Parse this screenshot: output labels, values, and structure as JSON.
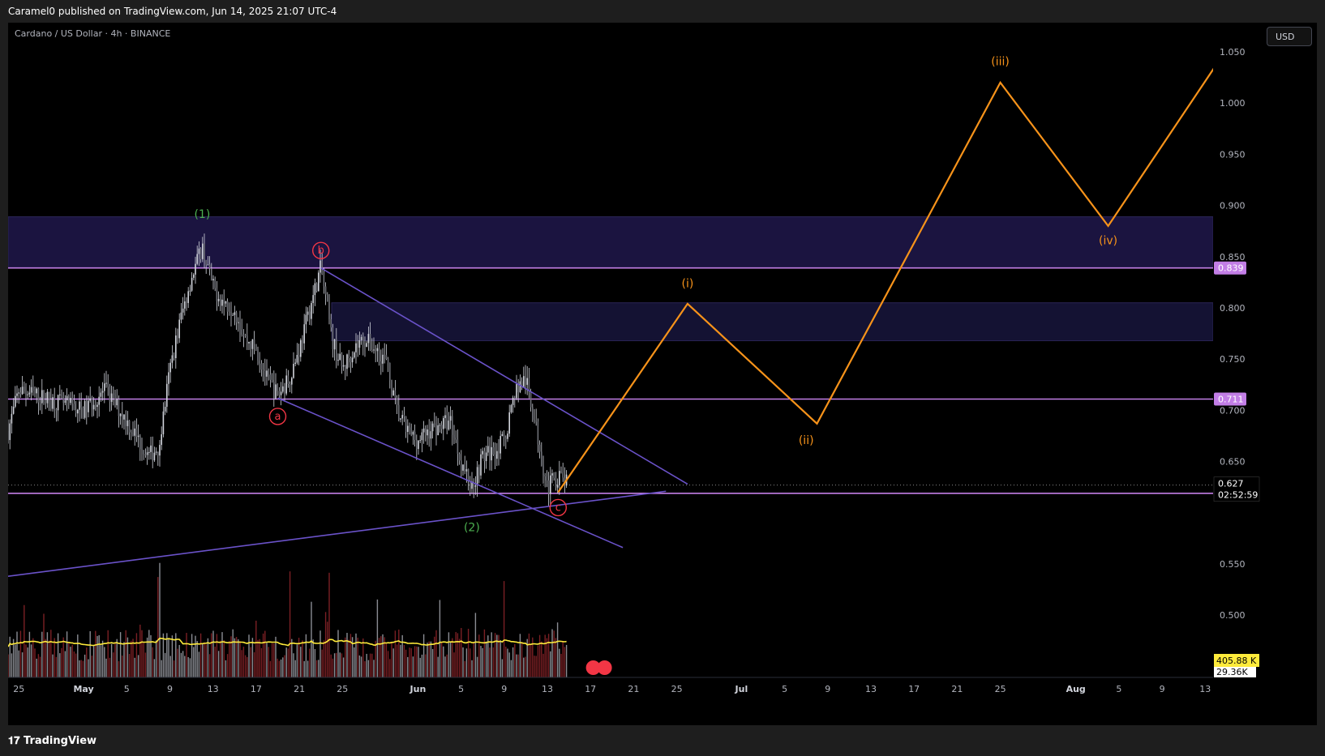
{
  "header": {
    "published": "Caramel0 published on TradingView.com, Jun 14, 2025 21:07 UTC-4",
    "symbol": "Cardano / US Dollar · 4h · BINANCE",
    "currency_button": "USD"
  },
  "footer": {
    "brand": "TradingView"
  },
  "chart_data": {
    "type": "candlestick",
    "price_axis": {
      "ylim": [
        0.45,
        1.055
      ],
      "ticks": [
        0.5,
        0.55,
        0.65,
        0.7,
        0.75,
        0.8,
        0.85,
        0.9,
        0.95,
        1.0,
        1.05
      ],
      "tick_labels": [
        "0.500",
        "0.550",
        "0.650",
        "0.700",
        "0.750",
        "0.800",
        "0.850",
        "0.900",
        "0.950",
        "1.000",
        "1.050"
      ]
    },
    "time_axis": {
      "labels": [
        "25",
        "May",
        "5",
        "9",
        "13",
        "17",
        "21",
        "25",
        "Jun",
        "5",
        "9",
        "13",
        "17",
        "21",
        "25",
        "Jul",
        "5",
        "9",
        "13",
        "17",
        "21",
        "25",
        "Aug",
        "5",
        "9",
        "13"
      ],
      "bold_labels": [
        "May",
        "Jun",
        "Jul",
        "Aug"
      ],
      "dates": [
        "2025-04-25",
        "2025-05-01",
        "2025-05-05",
        "2025-05-09",
        "2025-05-13",
        "2025-05-17",
        "2025-05-21",
        "2025-05-25",
        "2025-06-01",
        "2025-06-05",
        "2025-06-09",
        "2025-06-13",
        "2025-06-17",
        "2025-06-21",
        "2025-06-25",
        "2025-07-01",
        "2025-07-05",
        "2025-07-09",
        "2025-07-13",
        "2025-07-17",
        "2025-07-21",
        "2025-07-25",
        "2025-08-01",
        "2025-08-05",
        "2025-08-09",
        "2025-08-13"
      ]
    },
    "price_path": [
      [
        "2025-04-24",
        0.68
      ],
      [
        "2025-04-25",
        0.72
      ],
      [
        "2025-04-28",
        0.71
      ],
      [
        "2025-05-01",
        0.7
      ],
      [
        "2025-05-03",
        0.72
      ],
      [
        "2025-05-05",
        0.69
      ],
      [
        "2025-05-07",
        0.655
      ],
      [
        "2025-05-08",
        0.665
      ],
      [
        "2025-05-09",
        0.74
      ],
      [
        "2025-05-10",
        0.79
      ],
      [
        "2025-05-11",
        0.83
      ],
      [
        "2025-05-12",
        0.86
      ],
      [
        "2025-05-13",
        0.82
      ],
      [
        "2025-05-14",
        0.805
      ],
      [
        "2025-05-15",
        0.8
      ],
      [
        "2025-05-16",
        0.77
      ],
      [
        "2025-05-17",
        0.76
      ],
      [
        "2025-05-18",
        0.73
      ],
      [
        "2025-05-19",
        0.715
      ],
      [
        "2025-05-20",
        0.73
      ],
      [
        "2025-05-21",
        0.76
      ],
      [
        "2025-05-22",
        0.8
      ],
      [
        "2025-05-23",
        0.84
      ],
      [
        "2025-05-24",
        0.77
      ],
      [
        "2025-05-25",
        0.74
      ],
      [
        "2025-05-26",
        0.76
      ],
      [
        "2025-05-27",
        0.77
      ],
      [
        "2025-05-28",
        0.76
      ],
      [
        "2025-05-29",
        0.75
      ],
      [
        "2025-05-30",
        0.7
      ],
      [
        "2025-05-31",
        0.68
      ],
      [
        "2025-06-01",
        0.67
      ],
      [
        "2025-06-02",
        0.68
      ],
      [
        "2025-06-03",
        0.685
      ],
      [
        "2025-06-04",
        0.69
      ],
      [
        "2025-06-05",
        0.65
      ],
      [
        "2025-06-06",
        0.625
      ],
      [
        "2025-06-07",
        0.655
      ],
      [
        "2025-06-08",
        0.66
      ],
      [
        "2025-06-09",
        0.67
      ],
      [
        "2025-06-10",
        0.72
      ],
      [
        "2025-06-11",
        0.73
      ],
      [
        "2025-06-12",
        0.68
      ],
      [
        "2025-06-13",
        0.625
      ],
      [
        "2025-06-14",
        0.636
      ],
      [
        "2025-06-15",
        0.627
      ]
    ],
    "levels": [
      {
        "price": 0.839,
        "label": "0.839",
        "color": "#c27ee6"
      },
      {
        "price": 0.711,
        "label": "0.711",
        "color": "#c27ee6"
      },
      {
        "price": 0.619,
        "label": "0.619",
        "color": "#c27ee6"
      }
    ],
    "current_price": {
      "label": "0.627",
      "countdown": "02:52:59",
      "price": 0.627
    },
    "zones": [
      {
        "from": 0.839,
        "to": 0.889,
        "color": "#1b1440"
      },
      {
        "from": 0.768,
        "to": 0.805,
        "color": "#141233",
        "start": "2025-05-24"
      }
    ],
    "trendlines": [
      {
        "points": [
          [
            "2025-05-23",
            0.839
          ],
          [
            "2025-06-26",
            0.628
          ]
        ],
        "color": "#6a52c9"
      },
      {
        "points": [
          [
            "2025-05-19",
            0.712
          ],
          [
            "2025-06-20",
            0.566
          ]
        ],
        "color": "#6a52c9"
      },
      {
        "points": [
          [
            "2025-04-24",
            0.538
          ],
          [
            "2025-06-24",
            0.621
          ]
        ],
        "color": "#6a52c9"
      }
    ],
    "projection": {
      "color": "#f7931a",
      "points": [
        [
          "2025-06-14",
          0.62
        ],
        [
          "2025-06-26",
          0.804
        ],
        [
          "2025-07-08",
          0.687
        ],
        [
          "2025-07-25",
          1.02
        ],
        [
          "2025-08-04",
          0.88
        ],
        [
          "2025-08-14",
          1.037
        ]
      ]
    },
    "wave_labels": [
      {
        "text": "(1)",
        "date": "2025-05-12",
        "price": 0.888,
        "color": "#4caf50",
        "circled": false
      },
      {
        "text": "b",
        "date": "2025-05-23",
        "price": 0.856,
        "color": "#f23645",
        "circled": true
      },
      {
        "text": "a",
        "date": "2025-05-19",
        "price": 0.694,
        "color": "#f23645",
        "circled": true
      },
      {
        "text": "c",
        "date": "2025-06-14",
        "price": 0.605,
        "color": "#f23645",
        "circled": true
      },
      {
        "text": "(2)",
        "date": "2025-06-06",
        "price": 0.582,
        "color": "#4caf50",
        "circled": false
      },
      {
        "text": "(i)",
        "date": "2025-06-26",
        "price": 0.82,
        "color": "#f7931a",
        "circled": false
      },
      {
        "text": "(ii)",
        "date": "2025-07-07",
        "price": 0.667,
        "color": "#f7931a",
        "circled": false
      },
      {
        "text": "(iii)",
        "date": "2025-07-25",
        "price": 1.037,
        "color": "#f7931a",
        "circled": false
      },
      {
        "text": "(iv)",
        "date": "2025-08-04",
        "price": 0.862,
        "color": "#f7931a",
        "circled": false
      }
    ],
    "volume": {
      "last_label": "405.88 K",
      "ma_label": "29.36K",
      "ma_color": "#ffeb3b"
    },
    "colors": {
      "background": "#000000",
      "candle": "#d1d4dc",
      "volume_up": "#8a8c93",
      "volume_down": "#7a1f24"
    }
  }
}
